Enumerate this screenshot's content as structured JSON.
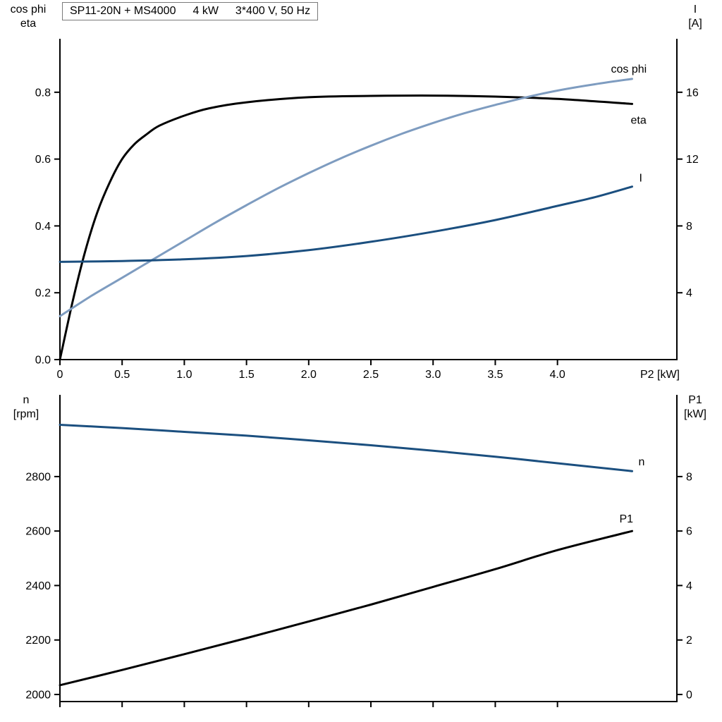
{
  "header": {
    "title": "SP11-20N + MS4000   4 kW   3*400 V, 50 Hz",
    "title_parts": [
      "SP11-20N + MS4000",
      "4 kW",
      "3*400 V, 50 Hz"
    ]
  },
  "colors": {
    "black_curve": "#000000",
    "cosphi_curve": "#7e9cc0",
    "blue_curve": "#1b4f7f",
    "axis": "#000000"
  },
  "chart_data": [
    {
      "type": "line",
      "title": "SP11-20N + MS4000   4 kW   3*400 V, 50 Hz",
      "x_axis": {
        "label": "P2 [kW]",
        "range": [
          0,
          4.96
        ],
        "ticks": [
          0,
          0.5,
          1.0,
          1.5,
          2.0,
          2.5,
          3.0,
          3.5,
          4.0
        ],
        "tick_labels": [
          "0",
          "0.5",
          "1.0",
          "1.5",
          "2.0",
          "2.5",
          "3.0",
          "3.5",
          "4.0"
        ]
      },
      "y_left": {
        "labels": [
          "cos phi",
          "eta"
        ],
        "range": [
          0,
          0.96
        ],
        "ticks": [
          0.0,
          0.2,
          0.4,
          0.6,
          0.8
        ],
        "tick_labels": [
          "0.0",
          "0.2",
          "0.4",
          "0.6",
          "0.8"
        ]
      },
      "y_right": {
        "labels": [
          "I",
          "[A]"
        ],
        "range": [
          0,
          19.2
        ],
        "ticks": [
          4,
          8,
          12,
          16
        ],
        "tick_labels": [
          "4",
          "8",
          "12",
          "16"
        ]
      },
      "grid": false,
      "legend_position": "curve-end-labels",
      "series": [
        {
          "name": "eta",
          "axis": "left",
          "color": "#000000",
          "label": "eta",
          "label_offset": [
            -2,
            28
          ],
          "points": [
            [
              0,
              0
            ],
            [
              0.1,
              0.17
            ],
            [
              0.2,
              0.32
            ],
            [
              0.3,
              0.44
            ],
            [
              0.4,
              0.53
            ],
            [
              0.5,
              0.6
            ],
            [
              0.6,
              0.645
            ],
            [
              0.7,
              0.675
            ],
            [
              0.8,
              0.7
            ],
            [
              1.0,
              0.73
            ],
            [
              1.2,
              0.752
            ],
            [
              1.5,
              0.77
            ],
            [
              2.0,
              0.785
            ],
            [
              2.5,
              0.789
            ],
            [
              3.0,
              0.79
            ],
            [
              3.5,
              0.787
            ],
            [
              4.0,
              0.78
            ],
            [
              4.6,
              0.765
            ]
          ]
        },
        {
          "name": "cos phi",
          "axis": "left",
          "color": "#7e9cc0",
          "label": "cos phi",
          "label_offset": [
            -30,
            -9
          ],
          "points": [
            [
              0,
              0.13
            ],
            [
              0.25,
              0.19
            ],
            [
              0.5,
              0.245
            ],
            [
              0.75,
              0.3
            ],
            [
              1.0,
              0.355
            ],
            [
              1.25,
              0.41
            ],
            [
              1.5,
              0.462
            ],
            [
              1.75,
              0.512
            ],
            [
              2.0,
              0.558
            ],
            [
              2.25,
              0.601
            ],
            [
              2.5,
              0.64
            ],
            [
              2.75,
              0.676
            ],
            [
              3.0,
              0.708
            ],
            [
              3.25,
              0.737
            ],
            [
              3.5,
              0.762
            ],
            [
              3.75,
              0.785
            ],
            [
              4.0,
              0.805
            ],
            [
              4.3,
              0.824
            ],
            [
              4.6,
              0.84
            ]
          ]
        },
        {
          "name": "I",
          "axis": "right",
          "color": "#1b4f7f",
          "label": "I",
          "label_offset": [
            10,
            -7
          ],
          "points": [
            [
              0,
              5.85
            ],
            [
              0.5,
              5.9
            ],
            [
              1.0,
              6.0
            ],
            [
              1.5,
              6.2
            ],
            [
              2.0,
              6.55
            ],
            [
              2.5,
              7.05
            ],
            [
              3.0,
              7.65
            ],
            [
              3.5,
              8.35
            ],
            [
              4.0,
              9.2
            ],
            [
              4.3,
              9.72
            ],
            [
              4.6,
              10.35
            ]
          ]
        }
      ]
    },
    {
      "type": "line",
      "title": "",
      "x_axis": {
        "label": "",
        "range": [
          0,
          4.96
        ],
        "ticks": [
          0,
          0.5,
          1.0,
          1.5,
          2.0,
          2.5,
          3.0,
          3.5,
          4.0
        ],
        "tick_labels": []
      },
      "y_left": {
        "labels": [
          "n",
          "[rpm]"
        ],
        "range": [
          1974,
          3100
        ],
        "ticks": [
          2000,
          2200,
          2400,
          2600,
          2800
        ],
        "tick_labels": [
          "2000",
          "2200",
          "2400",
          "2600",
          "2800"
        ]
      },
      "y_right": {
        "labels": [
          "P1",
          "[kW]"
        ],
        "range": [
          -0.26,
          11.0
        ],
        "ticks": [
          0,
          2,
          4,
          6,
          8
        ],
        "tick_labels": [
          "0",
          "2",
          "4",
          "6",
          "8"
        ]
      },
      "grid": false,
      "legend_position": "curve-end-labels",
      "series": [
        {
          "name": "n",
          "axis": "left",
          "color": "#1b4f7f",
          "label": "n",
          "label_offset": [
            9,
            -8
          ],
          "points": [
            [
              0,
              2990
            ],
            [
              0.5,
              2978
            ],
            [
              1.0,
              2964
            ],
            [
              1.5,
              2950
            ],
            [
              2.0,
              2933
            ],
            [
              2.5,
              2915
            ],
            [
              3.0,
              2895
            ],
            [
              3.5,
              2873
            ],
            [
              4.0,
              2849
            ],
            [
              4.6,
              2820
            ]
          ]
        },
        {
          "name": "P1",
          "axis": "right",
          "color": "#000000",
          "label": "P1",
          "label_offset": [
            -18,
            -12
          ],
          "points": [
            [
              0,
              0.34
            ],
            [
              0.5,
              0.9
            ],
            [
              1.0,
              1.48
            ],
            [
              1.5,
              2.07
            ],
            [
              2.0,
              2.68
            ],
            [
              2.5,
              3.3
            ],
            [
              3.0,
              3.95
            ],
            [
              3.5,
              4.6
            ],
            [
              4.0,
              5.3
            ],
            [
              4.6,
              6.0
            ]
          ]
        }
      ]
    }
  ]
}
